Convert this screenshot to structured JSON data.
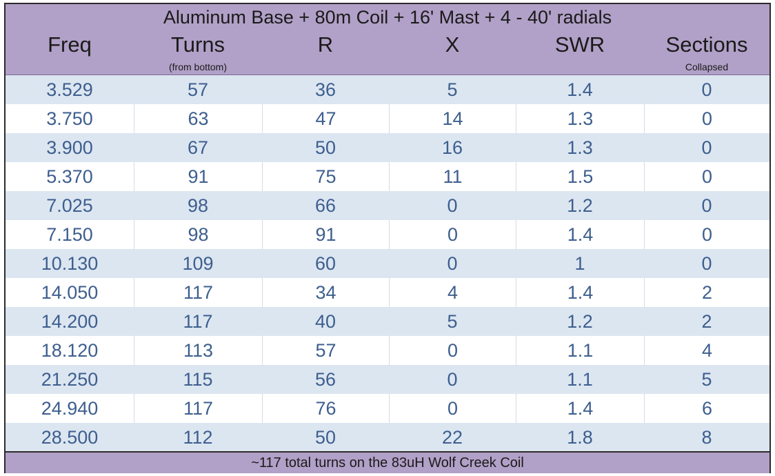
{
  "table": {
    "title": "Aluminum Base + 80m Coil + 16' Mast + 4 - 40' radials",
    "columns": [
      {
        "label": "Freq",
        "sub": ""
      },
      {
        "label": "Turns",
        "sub": "(from bottom)"
      },
      {
        "label": "R",
        "sub": ""
      },
      {
        "label": "X",
        "sub": ""
      },
      {
        "label": "SWR",
        "sub": ""
      },
      {
        "label": "Sections",
        "sub": "Collapsed"
      }
    ],
    "rows": [
      [
        "3.529",
        "57",
        "36",
        "5",
        "1.4",
        "0"
      ],
      [
        "3.750",
        "63",
        "47",
        "14",
        "1.3",
        "0"
      ],
      [
        "3.900",
        "67",
        "50",
        "16",
        "1.3",
        "0"
      ],
      [
        "5.370",
        "91",
        "75",
        "11",
        "1.5",
        "0"
      ],
      [
        "7.025",
        "98",
        "66",
        "0",
        "1.2",
        "0"
      ],
      [
        "7.150",
        "98",
        "91",
        "0",
        "1.4",
        "0"
      ],
      [
        "10.130",
        "109",
        "60",
        "0",
        "1",
        "0"
      ],
      [
        "14.050",
        "117",
        "34",
        "4",
        "1.4",
        "2"
      ],
      [
        "14.200",
        "117",
        "40",
        "5",
        "1.2",
        "2"
      ],
      [
        "18.120",
        "113",
        "57",
        "0",
        "1.1",
        "4"
      ],
      [
        "21.250",
        "115",
        "56",
        "0",
        "1.1",
        "5"
      ],
      [
        "24.940",
        "117",
        "76",
        "0",
        "1.4",
        "6"
      ],
      [
        "28.500",
        "112",
        "50",
        "22",
        "1.8",
        "8"
      ]
    ],
    "footer": "~117 total turns on the 83uH Wolf Creek Coil"
  },
  "colors": {
    "header_bg": "#b1a0c7",
    "shaded_row": "#dce6f1",
    "cell_text": "#3d5e8e"
  }
}
